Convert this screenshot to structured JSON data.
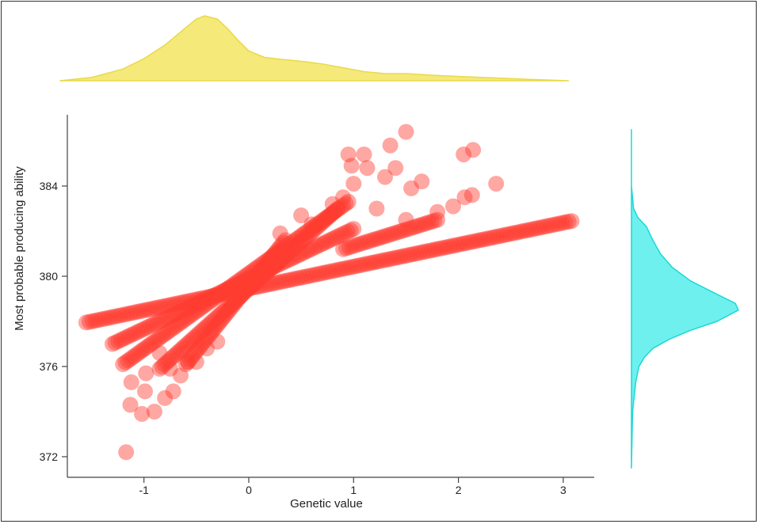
{
  "chart_data": {
    "type": "scatter",
    "title": "",
    "xlabel": "Genetic value",
    "ylabel": "Most probable producing ability",
    "xlim": [
      -1.75,
      3.3
    ],
    "ylim": [
      371.2,
      387.2
    ],
    "x_ticks": [
      -1,
      0,
      1,
      2,
      3
    ],
    "y_ticks": [
      372,
      376,
      380,
      384
    ],
    "grid": false,
    "colors": {
      "points": "#ff3b30",
      "top_density": "#f5e97a",
      "top_density_stroke": "#e9d94a",
      "right_density": "#6ef0ee",
      "right_density_stroke": "#1bd8d6",
      "axis": "#444444"
    },
    "series": [
      {
        "line_segments": [
          {
            "x0": -1.55,
            "y0": 377.95,
            "x1": 3.08,
            "y1": 382.45
          },
          {
            "x0": -1.3,
            "y0": 377.0,
            "x1": 1.0,
            "y1": 382.1
          },
          {
            "x0": -1.2,
            "y0": 376.1,
            "x1": 0.95,
            "y1": 383.3
          },
          {
            "x0": -0.85,
            "y0": 375.9,
            "x1": 0.85,
            "y1": 383.0
          },
          {
            "x0": -0.6,
            "y0": 376.1,
            "x1": 0.35,
            "y1": 381.6
          },
          {
            "x0": 0.9,
            "y0": 381.2,
            "x1": 1.8,
            "y1": 382.5
          }
        ],
        "points": [
          {
            "x": -1.17,
            "y": 372.2
          },
          {
            "x": -1.02,
            "y": 373.9
          },
          {
            "x": -0.9,
            "y": 374.0
          },
          {
            "x": -1.13,
            "y": 374.3
          },
          {
            "x": -0.99,
            "y": 374.9
          },
          {
            "x": -0.8,
            "y": 374.6
          },
          {
            "x": -1.12,
            "y": 375.3
          },
          {
            "x": -0.98,
            "y": 375.7
          },
          {
            "x": -0.72,
            "y": 374.9
          },
          {
            "x": -0.85,
            "y": 376.6
          },
          {
            "x": -0.58,
            "y": 376.2
          },
          {
            "x": 1.5,
            "y": 386.4
          },
          {
            "x": 1.35,
            "y": 385.8
          },
          {
            "x": 0.95,
            "y": 385.4
          },
          {
            "x": 1.1,
            "y": 385.4
          },
          {
            "x": 0.98,
            "y": 384.9
          },
          {
            "x": 1.13,
            "y": 384.8
          },
          {
            "x": 1.4,
            "y": 384.8
          },
          {
            "x": 1.3,
            "y": 384.4
          },
          {
            "x": 1.0,
            "y": 384.1
          },
          {
            "x": 1.55,
            "y": 383.9
          },
          {
            "x": 1.65,
            "y": 384.2
          },
          {
            "x": 2.05,
            "y": 385.4
          },
          {
            "x": 2.14,
            "y": 385.6
          },
          {
            "x": 2.13,
            "y": 383.6
          },
          {
            "x": 2.06,
            "y": 383.5
          },
          {
            "x": 2.36,
            "y": 384.1
          },
          {
            "x": 1.22,
            "y": 383.0
          },
          {
            "x": 1.5,
            "y": 382.5
          },
          {
            "x": 1.8,
            "y": 382.85
          },
          {
            "x": 1.95,
            "y": 383.1
          },
          {
            "x": 0.9,
            "y": 383.5
          },
          {
            "x": 0.8,
            "y": 383.2
          },
          {
            "x": 0.3,
            "y": 381.9
          },
          {
            "x": 0.5,
            "y": 382.7
          },
          {
            "x": 0.6,
            "y": 382.3
          },
          {
            "x": -0.3,
            "y": 377.1
          },
          {
            "x": -0.4,
            "y": 376.8
          },
          {
            "x": -0.5,
            "y": 376.2
          },
          {
            "x": -0.65,
            "y": 375.6
          },
          {
            "x": -0.75,
            "y": 375.9
          }
        ]
      }
    ],
    "marginal_x_density": {
      "x": [
        -1.8,
        -1.5,
        -1.2,
        -1.0,
        -0.8,
        -0.6,
        -0.5,
        -0.42,
        -0.3,
        -0.2,
        -0.1,
        0.0,
        0.15,
        0.3,
        0.5,
        0.7,
        0.9,
        1.1,
        1.3,
        1.5,
        1.8,
        2.1,
        2.4,
        2.7,
        3.05
      ],
      "density": [
        0.0,
        0.05,
        0.18,
        0.34,
        0.55,
        0.82,
        0.95,
        1.0,
        0.95,
        0.8,
        0.62,
        0.46,
        0.36,
        0.33,
        0.3,
        0.26,
        0.2,
        0.14,
        0.11,
        0.11,
        0.08,
        0.06,
        0.04,
        0.02,
        0.0
      ]
    },
    "marginal_y_density": {
      "y": [
        386.5,
        384.0,
        383.0,
        382.6,
        382.2,
        381.6,
        381.0,
        380.4,
        379.8,
        379.2,
        378.8,
        378.5,
        378.0,
        377.6,
        377.2,
        376.8,
        376.4,
        376.0,
        375.3,
        374.0,
        371.5
      ],
      "density": [
        0.0,
        0.0,
        0.02,
        0.06,
        0.14,
        0.2,
        0.27,
        0.38,
        0.55,
        0.8,
        0.97,
        1.0,
        0.8,
        0.55,
        0.35,
        0.2,
        0.12,
        0.07,
        0.04,
        0.01,
        0.0
      ]
    }
  }
}
